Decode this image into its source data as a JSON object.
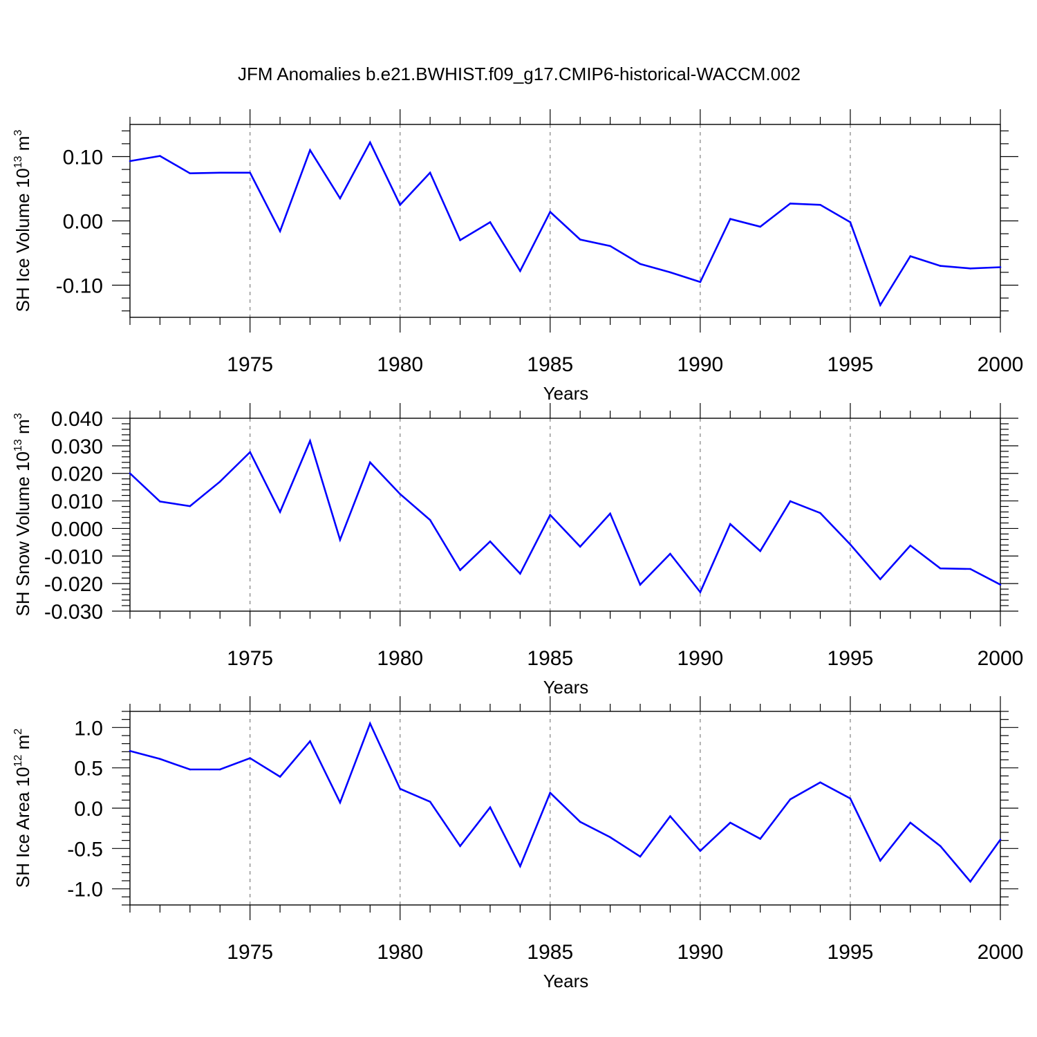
{
  "title": "JFM Anomalies b.e21.BWHIST.f09_g17.CMIP6-historical-WACCM.002",
  "colors": {
    "line": "#0000ff",
    "grid": "#808080",
    "axis": "#000000"
  },
  "chart_data": [
    {
      "type": "line",
      "ylabel": {
        "text": "SH Ice Volume 10",
        "sup": "13",
        "unit": " m",
        "unit_sup": "3"
      },
      "xlabel": "Years",
      "xlim": [
        1971,
        2000
      ],
      "ylim": [
        -0.15,
        0.15
      ],
      "yticks": [
        -0.1,
        0.0,
        0.1
      ],
      "ytick_labels": [
        "-0.10",
        "0.00",
        "0.10"
      ],
      "yminor_step": 0.02,
      "xticks": [
        1975,
        1980,
        1985,
        1990,
        1995,
        2000
      ],
      "xtick_labels": [
        "1975",
        "1980",
        "1985",
        "1990",
        "1995",
        "2000"
      ],
      "grid": "vertical dashed at major x ticks",
      "x": [
        1971,
        1972,
        1973,
        1974,
        1975,
        1976,
        1977,
        1978,
        1979,
        1980,
        1981,
        1982,
        1983,
        1984,
        1985,
        1986,
        1987,
        1988,
        1989,
        1990,
        1991,
        1992,
        1993,
        1994,
        1995,
        1996,
        1997,
        1998,
        1999,
        2000
      ],
      "series": [
        {
          "values": [
            0.093,
            0.101,
            0.074,
            0.075,
            0.075,
            -0.016,
            0.11,
            0.035,
            0.122,
            0.025,
            0.075,
            -0.03,
            -0.002,
            -0.078,
            0.014,
            -0.029,
            -0.039,
            -0.067,
            -0.08,
            -0.095,
            0.003,
            -0.009,
            0.027,
            0.025,
            -0.002,
            -0.131,
            -0.055,
            -0.07,
            -0.074,
            -0.072
          ]
        }
      ]
    },
    {
      "type": "line",
      "ylabel": {
        "text": "SH Snow Volume 10",
        "sup": "13",
        "unit": " m",
        "unit_sup": "3"
      },
      "xlabel": "Years",
      "xlim": [
        1971,
        2000
      ],
      "ylim": [
        -0.03,
        0.04
      ],
      "yticks": [
        -0.03,
        -0.02,
        -0.01,
        0.0,
        0.01,
        0.02,
        0.03,
        0.04
      ],
      "ytick_labels": [
        "-0.030",
        "-0.020",
        "-0.010",
        "0.000",
        "0.010",
        "0.020",
        "0.030",
        "0.040"
      ],
      "yminor_step": 0.002,
      "xticks": [
        1975,
        1980,
        1985,
        1990,
        1995,
        2000
      ],
      "xtick_labels": [
        "1975",
        "1980",
        "1985",
        "1990",
        "1995",
        "2000"
      ],
      "grid": "vertical dashed at major x ticks",
      "x": [
        1971,
        1972,
        1973,
        1974,
        1975,
        1976,
        1977,
        1978,
        1979,
        1980,
        1981,
        1982,
        1983,
        1984,
        1985,
        1986,
        1987,
        1988,
        1989,
        1990,
        1991,
        1992,
        1993,
        1994,
        1995,
        1996,
        1997,
        1998,
        1999,
        2000
      ],
      "series": [
        {
          "values": [
            0.02,
            0.0098,
            0.0081,
            0.017,
            0.0277,
            0.006,
            0.0318,
            -0.0041,
            0.024,
            0.0125,
            0.0031,
            -0.0151,
            -0.0047,
            -0.0164,
            0.0049,
            -0.0066,
            0.0054,
            -0.0204,
            -0.0092,
            -0.0231,
            0.0016,
            -0.0082,
            0.0099,
            0.0056,
            -0.0058,
            -0.0184,
            -0.0062,
            -0.0145,
            -0.0147,
            -0.0204
          ]
        }
      ]
    },
    {
      "type": "line",
      "ylabel": {
        "text": "SH Ice Area 10",
        "sup": "12",
        "unit": " m",
        "unit_sup": "2"
      },
      "xlabel": "Years",
      "xlim": [
        1971,
        2000
      ],
      "ylim": [
        -1.2,
        1.2
      ],
      "yticks": [
        -1.0,
        -0.5,
        0.0,
        0.5,
        1.0
      ],
      "ytick_labels": [
        "-1.0",
        "-0.5",
        "0.0",
        "0.5",
        "1.0"
      ],
      "yminor_step": 0.1,
      "xticks": [
        1975,
        1980,
        1985,
        1990,
        1995,
        2000
      ],
      "xtick_labels": [
        "1975",
        "1980",
        "1985",
        "1990",
        "1995",
        "2000"
      ],
      "grid": "vertical dashed at major x ticks",
      "x": [
        1971,
        1972,
        1973,
        1974,
        1975,
        1976,
        1977,
        1978,
        1979,
        1980,
        1981,
        1982,
        1983,
        1984,
        1985,
        1986,
        1987,
        1988,
        1989,
        1990,
        1991,
        1992,
        1993,
        1994,
        1995,
        1996,
        1997,
        1998,
        1999,
        2000
      ],
      "series": [
        {
          "values": [
            0.71,
            0.61,
            0.48,
            0.48,
            0.62,
            0.39,
            0.83,
            0.07,
            1.05,
            0.24,
            0.08,
            -0.47,
            0.01,
            -0.72,
            0.19,
            -0.17,
            -0.36,
            -0.6,
            -0.1,
            -0.53,
            -0.18,
            -0.38,
            0.11,
            0.32,
            0.12,
            -0.65,
            -0.18,
            -0.47,
            -0.91,
            -0.39
          ]
        }
      ]
    }
  ]
}
